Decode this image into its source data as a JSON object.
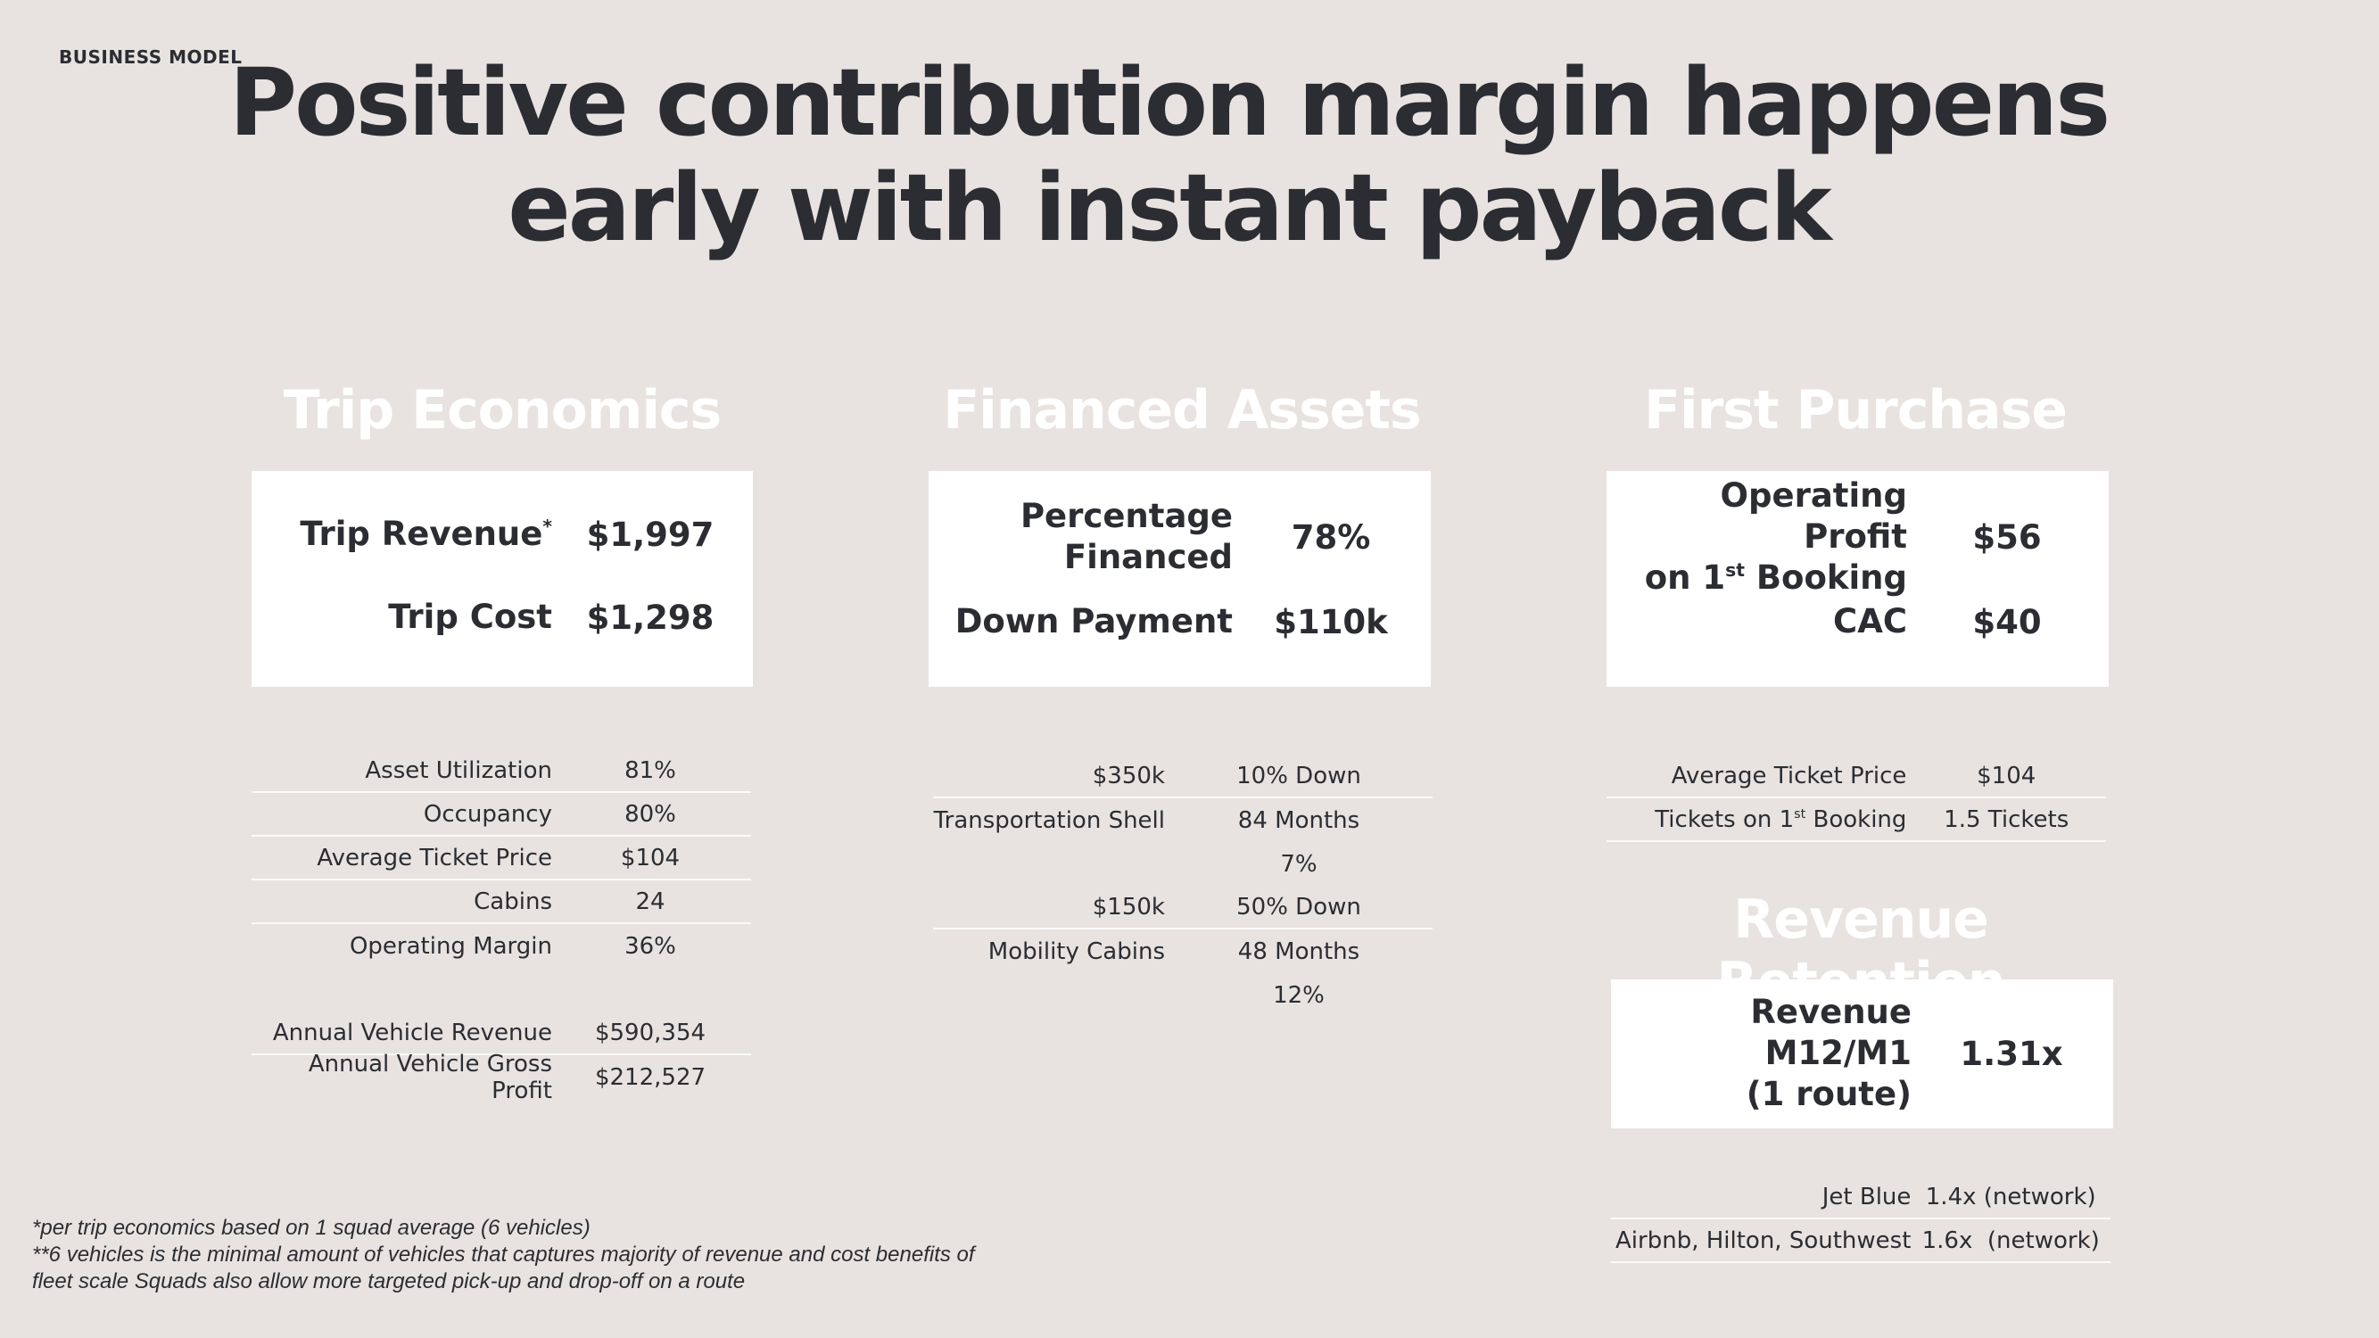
{
  "header": {
    "tag": "BUSINESS MODEL",
    "title_line1": "Positive contribution margin happens",
    "title_line2": "early with instant payback"
  },
  "trip_economics": {
    "heading": "Trip Economics",
    "card": [
      {
        "label": "Trip Revenue",
        "value": "$1,997"
      },
      {
        "label": "Trip Cost",
        "value": "$1,298"
      }
    ],
    "rows": [
      {
        "label": "Asset Utilization",
        "value": "81%"
      },
      {
        "label": "Occupancy",
        "value": "80%"
      },
      {
        "label": "Average Ticket Price",
        "value": "$104"
      },
      {
        "label": "Cabins",
        "value": "24"
      },
      {
        "label": "Operating Margin",
        "value": "36%"
      },
      {
        "label": "Annual Vehicle Revenue",
        "value": "$590,354"
      },
      {
        "label": "Annual Vehicle Gross Profit",
        "value": "$212,527"
      }
    ]
  },
  "financed_assets": {
    "heading": "Financed Assets",
    "card": [
      {
        "label_line1": "Percentage",
        "label_line2": "Financed",
        "value": "78%"
      },
      {
        "label": "Down Payment",
        "value": "$110k"
      }
    ],
    "rows": [
      {
        "label": "$350k",
        "value": "10% Down"
      },
      {
        "label": "Transportation Shell",
        "value": "84 Months"
      },
      {
        "label": "",
        "value": "7%"
      },
      {
        "label": "$150k",
        "value": "50% Down"
      },
      {
        "label": "Mobility Cabins",
        "value": "48 Months"
      },
      {
        "label": "",
        "value": "12%"
      }
    ]
  },
  "first_purchase": {
    "heading": "First Purchase",
    "card": [
      {
        "label_line1": "Operating Profit",
        "label_line2_pre": "on 1",
        "label_line2_sup": "st",
        "label_line2_post": " Booking",
        "value": "$56"
      },
      {
        "label": "CAC",
        "value": "$40"
      }
    ],
    "rows": [
      {
        "label": "Average Ticket Price",
        "value": "$104"
      },
      {
        "label_pre": "Tickets on 1",
        "label_sup": "st",
        "label_post": " Booking",
        "value": "1.5 Tickets"
      }
    ]
  },
  "revenue_retention": {
    "heading": "Revenue Retention",
    "card": {
      "label_line1": "Revenue M12/M1",
      "label_line2": "(1 route)",
      "value": "1.31x"
    },
    "rows": [
      {
        "label": "Jet Blue",
        "value": "1.4x (network)"
      },
      {
        "label": "Airbnb, Hilton, Southwest",
        "value": "1.6x  (network)"
      }
    ]
  },
  "footnotes": {
    "line1": "*per trip economics based on 1 squad average (6 vehicles)",
    "line2": "**6 vehicles is the minimal amount of vehicles that captures majority of revenue and cost benefits of",
    "line3": "fleet scale Squads also allow more targeted pick-up and drop-off on a route"
  }
}
